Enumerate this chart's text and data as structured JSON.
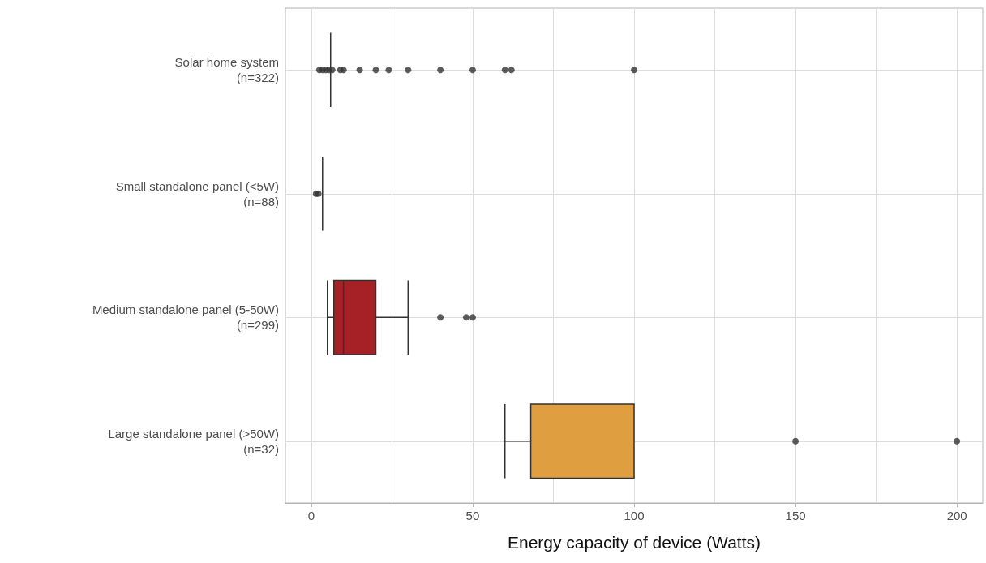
{
  "chart_data": {
    "type": "box",
    "orientation": "horizontal",
    "xlabel": "Energy capacity of device (Watts)",
    "categories": [
      "Solar home system\n(n=322)",
      "Small standalone panel (<5W)\n(n=88)",
      "Medium standalone panel (5-50W)\n(n=299)",
      "Large standalone panel (>50W)\n(n=32)"
    ],
    "boxes": [
      {
        "low": 6,
        "q1": 6,
        "median": 6,
        "q3": 6,
        "high": 6,
        "outliers": [
          2.5,
          3.5,
          4.5,
          5.5,
          6.5,
          9,
          10,
          15,
          20,
          24,
          30,
          40,
          50,
          60,
          62,
          100
        ]
      },
      {
        "low": 3.5,
        "q1": 3.5,
        "median": 3.5,
        "q3": 3.5,
        "high": 3.5,
        "outliers": [
          1.5,
          2.2
        ]
      },
      {
        "low": 5,
        "q1": 7,
        "median": 10,
        "q3": 20,
        "high": 30,
        "outliers": [
          40,
          48,
          50
        ]
      },
      {
        "low": 60,
        "q1": 68,
        "median": 100,
        "q3": 100,
        "high": 100,
        "outliers": [
          150,
          200
        ]
      }
    ],
    "colors": [
      "#333333",
      "#333333",
      "#a52126",
      "#df9e3f"
    ],
    "xlim": [
      -8,
      208
    ],
    "xticks": [
      0,
      50,
      100,
      150,
      200
    ],
    "grid": true
  }
}
